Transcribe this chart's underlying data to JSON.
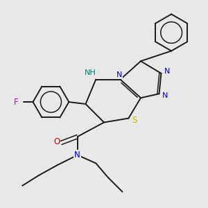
{
  "background_color": "#e8e8e8",
  "bond_color": "#1a1a1a",
  "N_color": "#0000cc",
  "O_color": "#cc0000",
  "S_color": "#bbbb00",
  "F_color": "#cc00cc",
  "NH_color": "#007777",
  "figsize": [
    3.0,
    3.0
  ],
  "dpi": 100,
  "xlim": [
    0,
    10
  ],
  "ylim": [
    0,
    10
  ]
}
